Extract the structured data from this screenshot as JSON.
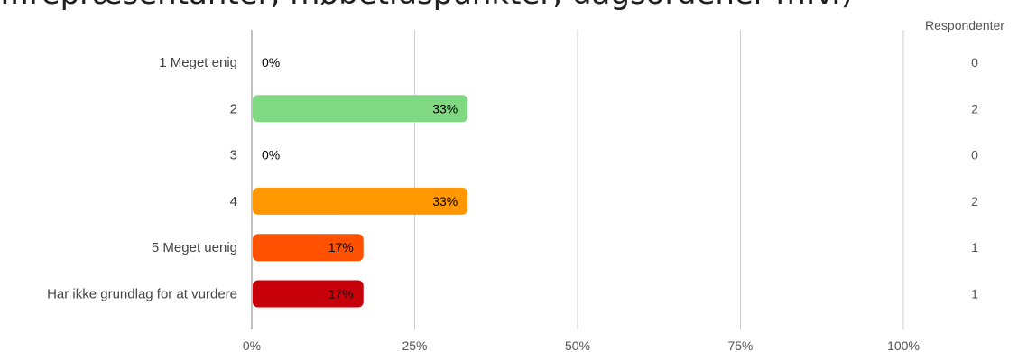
{
  "page": {
    "title_fragment": "...repræsentanter, møbetidspunkter, dagsordener m.v.)",
    "respondents_header": "Respondenter"
  },
  "chart_data": {
    "type": "bar",
    "orientation": "horizontal",
    "categories": [
      "1 Meget enig",
      "2",
      "3",
      "4",
      "5 Meget uenig",
      "Har ikke grundlag for at vurdere"
    ],
    "values": [
      0,
      33,
      0,
      33,
      17,
      17
    ],
    "value_labels": [
      "0%",
      "33%",
      "0%",
      "33%",
      "17%",
      "17%"
    ],
    "respondents": [
      "0",
      "2",
      "0",
      "2",
      "1",
      "1"
    ],
    "colors": [
      "#4caf50",
      "#81d882",
      "#ffd54f",
      "#ff9800",
      "#ff5100",
      "#c8000a"
    ],
    "xticks": [
      "0%",
      "25%",
      "50%",
      "75%",
      "100%"
    ],
    "xlim": [
      0,
      100
    ],
    "grid": true
  }
}
